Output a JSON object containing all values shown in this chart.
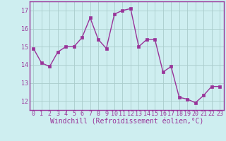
{
  "x": [
    0,
    1,
    2,
    3,
    4,
    5,
    6,
    7,
    8,
    9,
    10,
    11,
    12,
    13,
    14,
    15,
    16,
    17,
    18,
    19,
    20,
    21,
    22,
    23
  ],
  "y": [
    14.9,
    14.1,
    13.9,
    14.7,
    15.0,
    15.0,
    15.5,
    16.6,
    15.4,
    14.9,
    16.8,
    17.0,
    17.1,
    15.0,
    15.4,
    15.4,
    13.6,
    13.9,
    12.2,
    12.1,
    11.9,
    12.3,
    12.8,
    12.8
  ],
  "line_color": "#993399",
  "marker": "s",
  "markersize": 2.5,
  "linewidth": 1.0,
  "xlabel": "Windchill (Refroidissement éolien,°C)",
  "xlabel_fontsize": 7,
  "ylim": [
    11.5,
    17.5
  ],
  "xlim": [
    -0.5,
    23.5
  ],
  "yticks": [
    12,
    13,
    14,
    15,
    16,
    17
  ],
  "xticks": [
    0,
    1,
    2,
    3,
    4,
    5,
    6,
    7,
    8,
    9,
    10,
    11,
    12,
    13,
    14,
    15,
    16,
    17,
    18,
    19,
    20,
    21,
    22,
    23
  ],
  "tick_fontsize": 6,
  "bg_color": "#ceeef0",
  "grid_color": "#aacccc",
  "tick_color": "#993399",
  "label_color": "#993399",
  "spine_color": "#993399"
}
